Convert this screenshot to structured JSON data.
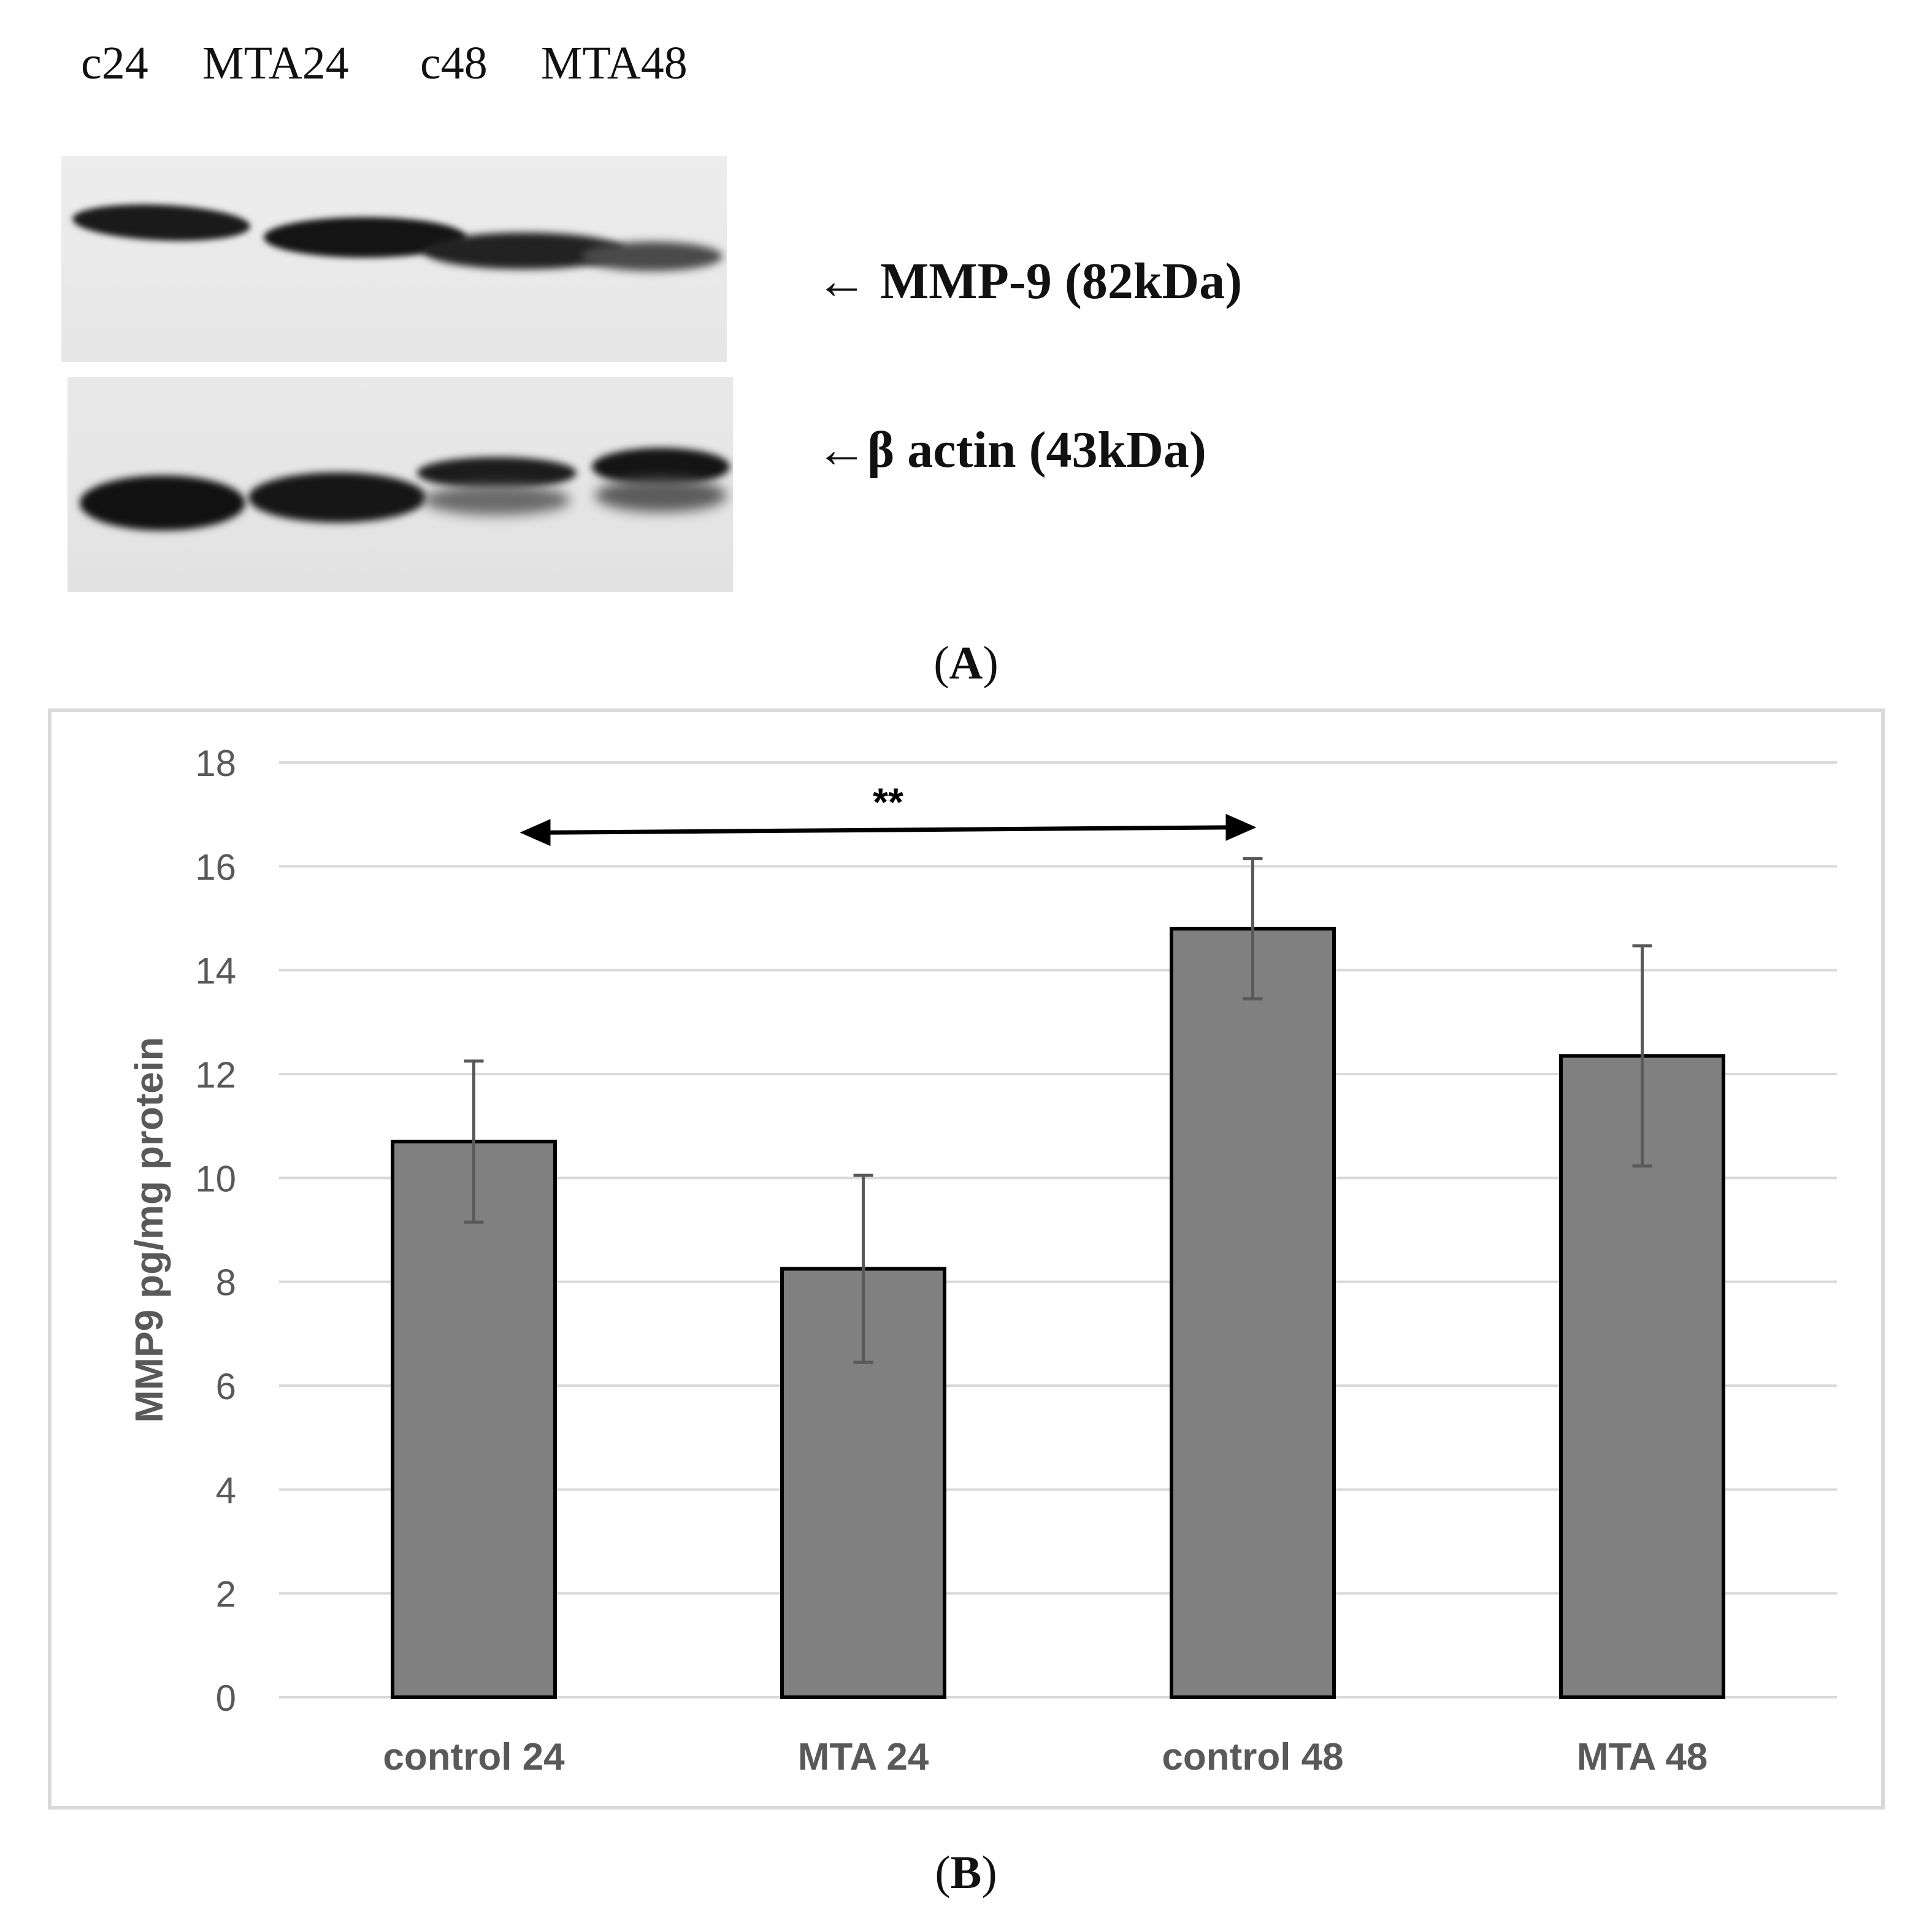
{
  "figure": {
    "lanes": [
      "c24",
      "MTA24",
      "c48",
      "MTA48"
    ],
    "blot_labels": {
      "top": "← MMP-9 (82kDa)",
      "bottom": "←β actin (43kDa)"
    },
    "panel_a": "A",
    "panel_b": "B",
    "significance": "**"
  },
  "chart_data": {
    "type": "bar",
    "categories": [
      "control 24",
      "MTA 24",
      "control 48",
      "MTA 48"
    ],
    "values": [
      10.7,
      8.25,
      14.8,
      12.35
    ],
    "error": [
      1.55,
      1.8,
      1.35,
      2.12
    ],
    "ylabel": "MMP9 pg/mg protein",
    "ylim": [
      0,
      18
    ],
    "yticks": [
      0,
      2,
      4,
      6,
      8,
      10,
      12,
      14,
      16,
      18
    ],
    "grid": true,
    "bar_color": "#808080",
    "significance_bracket": {
      "from": "control 24",
      "to": "control 48",
      "label": "**"
    }
  }
}
